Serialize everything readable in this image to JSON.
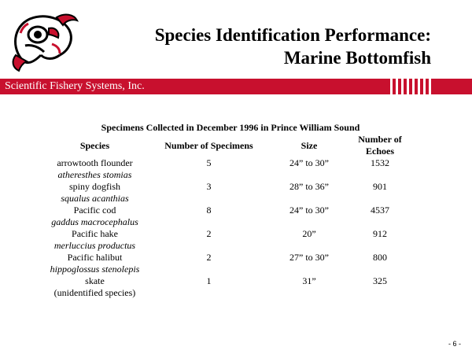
{
  "title": {
    "line1": "Species Identification Performance:",
    "line2": "Marine Bottomfish"
  },
  "company_band": {
    "name": "Scientific Fishery Systems, Inc.",
    "color": "#c8102e"
  },
  "logo": {
    "icon": "fish-logo-icon"
  },
  "table": {
    "caption": "Specimens Collected in December 1996 in Prince William Sound",
    "headers": [
      "Species",
      "Number of Specimens",
      "Size",
      "Number of Echoes"
    ],
    "rows": [
      {
        "species": "arrowtooth flounder",
        "scientific": "atheresthes stomias",
        "count": "5",
        "size": "24” to 30”",
        "echoes": "1532"
      },
      {
        "species": "spiny dogfish",
        "scientific": "squalus acanthias",
        "count": "3",
        "size": "28” to 36”",
        "echoes": "901"
      },
      {
        "species": "Pacific cod",
        "scientific": "gaddus macrocephalus",
        "count": "8",
        "size": "24” to 30”",
        "echoes": "4537"
      },
      {
        "species": "Pacific hake",
        "scientific": "merluccius productus",
        "count": "2",
        "size": "20”",
        "echoes": "912"
      },
      {
        "species": "Pacific halibut",
        "scientific": "hippoglossus stenolepis",
        "count": "2",
        "size": "27” to 30”",
        "echoes": "800"
      },
      {
        "species": "skate",
        "scientific": "(unidentified species)",
        "count": "1",
        "size": "31”",
        "echoes": "325"
      }
    ]
  },
  "page_number": "- 6 -"
}
